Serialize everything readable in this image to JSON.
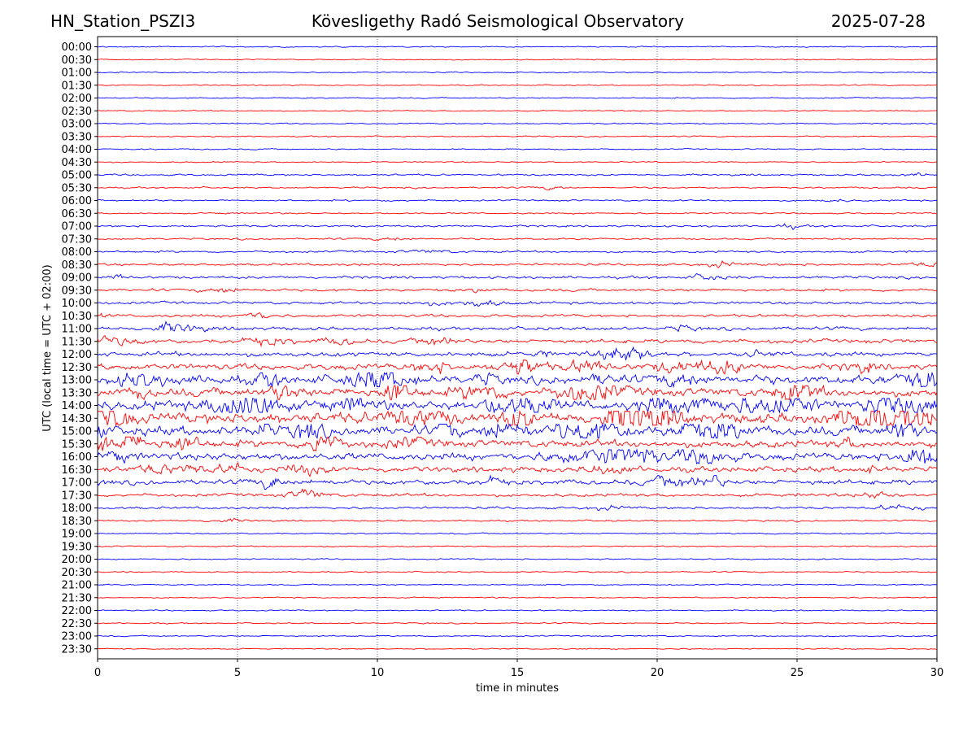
{
  "header": {
    "station": "HN_Station_PSZI3",
    "observatory": "Kövesligethy Radó Seismological Observatory",
    "date": "2025-07-28"
  },
  "chart_data": {
    "type": "line",
    "title": "Kövesligethy Radó Seismological Observatory",
    "xlabel": "time in minutes",
    "ylabel": "UTC (local time = UTC + 02:00)",
    "xlim": [
      0,
      30
    ],
    "x_ticks": [
      0,
      5,
      10,
      15,
      20,
      25,
      30
    ],
    "vertical_gridlines": true,
    "row_labels": [
      "00:00",
      "00:30",
      "01:00",
      "01:30",
      "02:00",
      "02:30",
      "03:00",
      "03:30",
      "04:00",
      "04:30",
      "05:00",
      "05:30",
      "06:00",
      "06:30",
      "07:00",
      "07:30",
      "08:00",
      "08:30",
      "09:00",
      "09:30",
      "10:00",
      "10:30",
      "11:00",
      "11:30",
      "12:00",
      "12:30",
      "13:00",
      "13:30",
      "14:00",
      "14:30",
      "15:00",
      "15:30",
      "16:00",
      "16:30",
      "17:00",
      "17:30",
      "18:00",
      "18:30",
      "19:00",
      "19:30",
      "20:00",
      "20:30",
      "21:00",
      "21:30",
      "22:00",
      "22:30",
      "23:00",
      "23:30"
    ],
    "trace_colors": [
      "#0000ff",
      "#ff0000"
    ],
    "relative_activity": [
      0.04,
      0.04,
      0.04,
      0.04,
      0.04,
      0.04,
      0.05,
      0.05,
      0.05,
      0.05,
      0.1,
      0.08,
      0.08,
      0.07,
      0.12,
      0.1,
      0.12,
      0.15,
      0.18,
      0.18,
      0.18,
      0.2,
      0.25,
      0.3,
      0.35,
      0.5,
      0.7,
      0.7,
      0.8,
      0.9,
      0.8,
      0.6,
      0.6,
      0.45,
      0.4,
      0.22,
      0.15,
      0.08,
      0.06,
      0.05,
      0.05,
      0.05,
      0.05,
      0.05,
      0.05,
      0.05,
      0.05,
      0.05
    ]
  }
}
